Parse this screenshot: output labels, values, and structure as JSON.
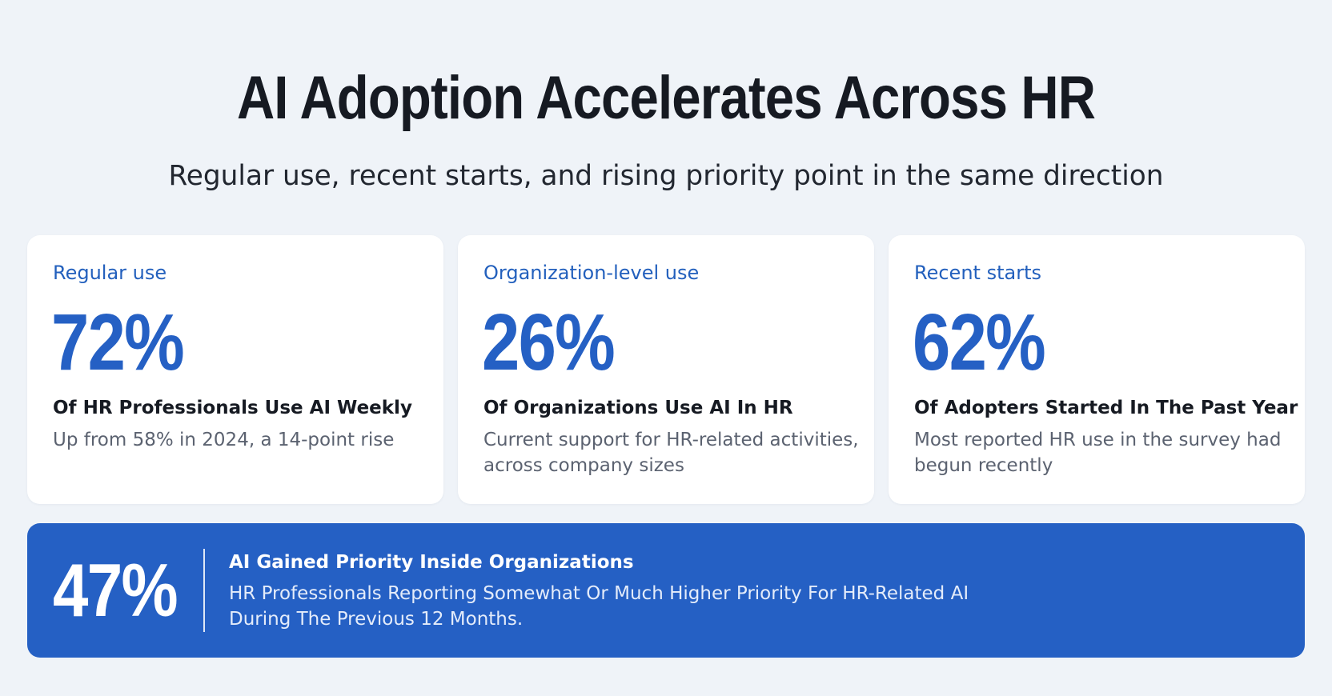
{
  "header": {
    "title": "AI Adoption Accelerates Across HR",
    "subtitle": "Regular use, recent starts, and rising priority point in the same direction"
  },
  "cards": [
    {
      "label": "Regular use",
      "value": "72%",
      "heading": "Of HR Professionals Use AI Weekly",
      "description": "Up from 58% in 2024, a 14-point rise"
    },
    {
      "label": "Organization-level use",
      "value": "26%",
      "heading": "Of Organizations Use AI In HR",
      "description": "Current support for HR-related activities, across company sizes"
    },
    {
      "label": "Recent starts",
      "value": "62%",
      "heading": "Of Adopters Started In The Past Year",
      "description": "Most reported HR use in the survey had begun recently"
    }
  ],
  "banner": {
    "value": "47%",
    "heading": "AI Gained Priority Inside Organizations",
    "description": "HR Professionals Reporting Somewhat Or Much Higher Priority For HR-Related AI During The Previous 12 Months."
  },
  "colors": {
    "background": "#eff3f8",
    "accent": "#2560c4",
    "heading_text": "#161a22",
    "muted_text": "#5b6270"
  }
}
